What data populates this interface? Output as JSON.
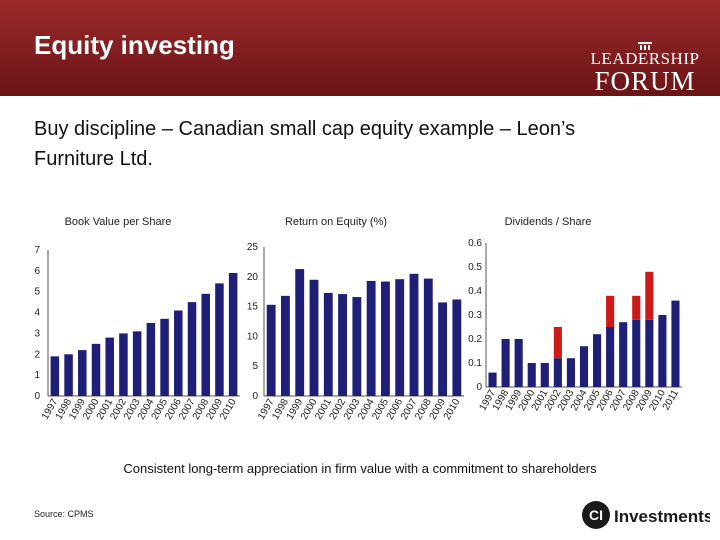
{
  "slide": {
    "title": "Equity investing",
    "subtitle": "Buy discipline – Canadian small cap equity example – Leon’s Furniture Ltd.",
    "caption": "Consistent long-term appreciation in firm value with a commitment to shareholders",
    "source": "Source: CPMS",
    "logo_line1": "LEADERSHIP",
    "logo_line2": "FORUM",
    "ci_logo_text": "Investments",
    "header_color": "#7a1c1e",
    "bar_color": "#1f1f78",
    "special_color": "#cc1a1a"
  },
  "chart_data": [
    {
      "type": "bar",
      "title": "Book Value per Share",
      "categories": [
        "1997",
        "1998",
        "1999",
        "2000",
        "2001",
        "2002",
        "2003",
        "2004",
        "2005",
        "2006",
        "2007",
        "2008",
        "2009",
        "2010"
      ],
      "values": [
        1.9,
        2.0,
        2.2,
        2.5,
        2.8,
        3.0,
        3.1,
        3.5,
        3.7,
        4.1,
        4.5,
        4.9,
        5.4,
        5.9
      ],
      "ylim": [
        0,
        7
      ],
      "yticks": [
        0,
        1,
        2,
        3,
        4,
        5,
        6,
        7
      ],
      "ytick_labels": [
        "0",
        "1",
        "2",
        "3",
        "4",
        "5",
        "6",
        "7"
      ]
    },
    {
      "type": "bar",
      "title": "Return on Equity (%)",
      "categories": [
        "1997",
        "1998",
        "1999",
        "2000",
        "2001",
        "2002",
        "2003",
        "2004",
        "2005",
        "2006",
        "2007",
        "2008",
        "2009",
        "2010"
      ],
      "values": [
        15.3,
        16.8,
        21.3,
        19.5,
        17.3,
        17.1,
        16.6,
        19.3,
        19.2,
        19.6,
        20.5,
        19.7,
        15.7,
        16.2
      ],
      "ylim": [
        0,
        25
      ],
      "yticks": [
        0,
        5,
        10,
        15,
        20,
        25
      ],
      "ytick_labels": [
        "0",
        "5",
        "10",
        "15",
        "20",
        "25"
      ]
    },
    {
      "type": "bar",
      "stacked": true,
      "title": "Dividends / Share",
      "categories": [
        "1997",
        "1998",
        "1999",
        "2000",
        "2001",
        "2002",
        "2003",
        "2004",
        "2005",
        "2006",
        "2007",
        "2008",
        "2009",
        "2010",
        "2011"
      ],
      "series": [
        {
          "values": [
            0.06,
            0.2,
            0.2,
            0.1,
            0.1,
            0.12,
            0.12,
            0.17,
            0.22,
            0.25,
            0.27,
            0.28,
            0.28,
            0.3,
            0.36
          ]
        },
        {
          "values": [
            0,
            0,
            0,
            0,
            0,
            0.13,
            0,
            0,
            0,
            0.13,
            0,
            0.1,
            0.2,
            0,
            0
          ]
        }
      ],
      "ylim": [
        0,
        0.6
      ],
      "yticks": [
        0,
        0.1,
        0.2,
        0.3,
        0.4,
        0.5,
        0.6
      ],
      "ytick_labels": [
        "0",
        "0.1",
        "0.2",
        "0.3",
        "0.4",
        "0.5",
        "0.6"
      ]
    }
  ]
}
